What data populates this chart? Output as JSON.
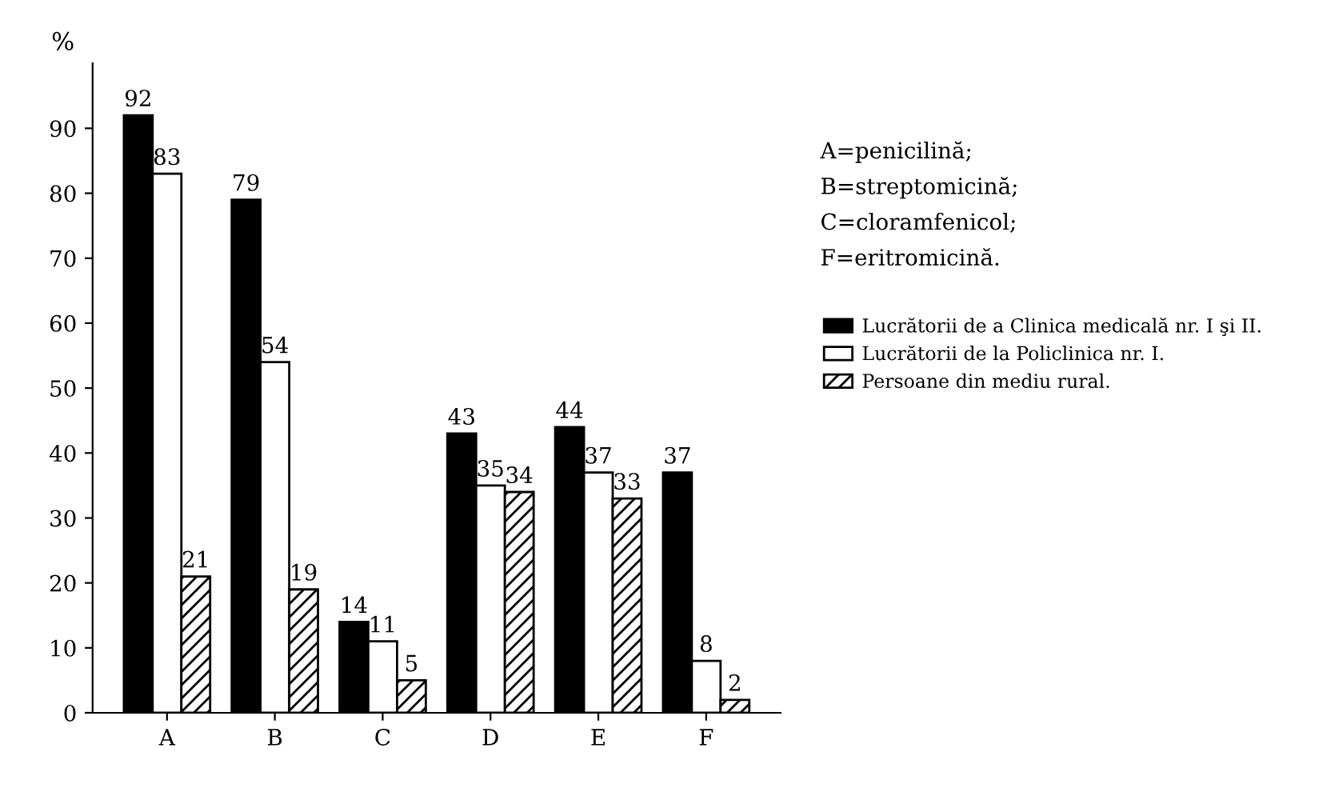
{
  "chart_data": {
    "type": "bar",
    "ylabel": "%",
    "categories": [
      "A",
      "B",
      "C",
      "D",
      "E",
      "F"
    ],
    "series": [
      {
        "name": "Lucrătorii de a Clinica medicală nr. I şi II.",
        "color": "#000000",
        "values": [
          92,
          79,
          14,
          43,
          44,
          37
        ]
      },
      {
        "name": "Lucrătorii de la Policlinica nr. I.",
        "color": "#ffffff",
        "values": [
          83,
          54,
          11,
          35,
          37,
          8
        ]
      },
      {
        "name": "Persoane din mediu rural.",
        "color": "#000000",
        "values": [
          21,
          19,
          5,
          34,
          33,
          2
        ]
      }
    ],
    "ylim": [
      0,
      100
    ],
    "yticks": [
      0,
      10,
      20,
      30,
      40,
      50,
      60,
      70,
      80,
      90
    ],
    "data_labels": true,
    "grid": false,
    "legend": "right",
    "annotations": [
      "A=penicilină;",
      "B=streptomicină;",
      "C=cloramfenicol;",
      "F=eritromicină."
    ]
  }
}
